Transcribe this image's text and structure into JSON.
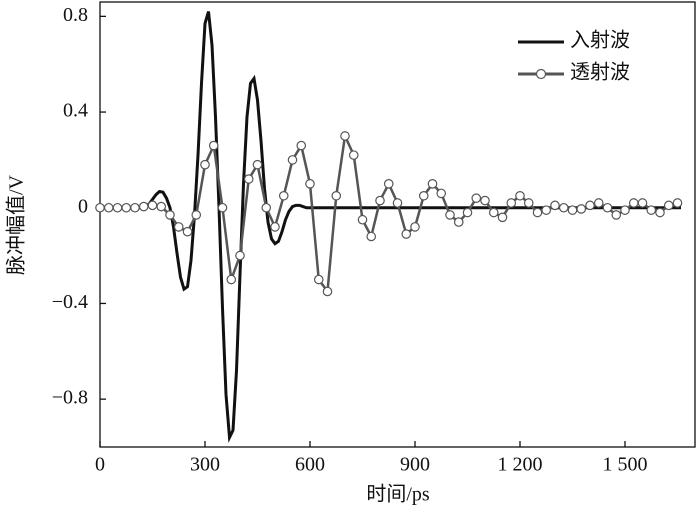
{
  "chart_data": {
    "type": "line",
    "xlabel": "时间/ps",
    "ylabel": "脉冲幅值/V",
    "xlim": [
      0,
      1700
    ],
    "ylim": [
      -1,
      0.86
    ],
    "xticks": [
      0,
      300,
      600,
      900,
      {
        "value": 1200,
        "label": "1 200"
      },
      {
        "value": 1500,
        "label": "1 500"
      }
    ],
    "yticks": [
      {
        "value": -0.8,
        "label": "−0.8"
      },
      {
        "value": -0.4,
        "label": "−0.4"
      },
      0,
      0.4,
      0.8
    ],
    "legend": "upper right",
    "series": [
      {
        "name": "入射波",
        "color": "#111111",
        "marker": "none",
        "x": [
          0,
          120,
          130,
          140,
          150,
          160,
          170,
          180,
          190,
          200,
          210,
          220,
          230,
          240,
          250,
          260,
          270,
          280,
          290,
          300,
          310,
          320,
          330,
          340,
          350,
          360,
          370,
          380,
          390,
          400,
          410,
          420,
          430,
          440,
          450,
          460,
          470,
          480,
          490,
          500,
          510,
          520,
          530,
          540,
          550,
          560,
          570,
          580,
          590,
          700,
          1660
        ],
        "values": [
          0,
          0,
          0.005,
          0.015,
          0.035,
          0.055,
          0.068,
          0.065,
          0.04,
          0,
          -0.08,
          -0.19,
          -0.29,
          -0.34,
          -0.33,
          -0.22,
          -0.03,
          0.22,
          0.52,
          0.77,
          0.82,
          0.68,
          0.38,
          0,
          -0.42,
          -0.78,
          -0.96,
          -0.93,
          -0.68,
          -0.28,
          0.1,
          0.38,
          0.52,
          0.54,
          0.45,
          0.28,
          0.08,
          -0.06,
          -0.13,
          -0.15,
          -0.14,
          -0.1,
          -0.05,
          -0.015,
          0.005,
          0.01,
          0.01,
          0.005,
          0,
          0,
          0
        ]
      },
      {
        "name": "透射波",
        "color": "#555555",
        "marker": "circle",
        "x": [
          0,
          25,
          50,
          75,
          100,
          125,
          150,
          175,
          200,
          225,
          250,
          275,
          300,
          325,
          350,
          375,
          400,
          425,
          450,
          475,
          500,
          525,
          550,
          575,
          600,
          625,
          650,
          675,
          700,
          725,
          750,
          775,
          800,
          825,
          850,
          875,
          900,
          925,
          950,
          975,
          1000,
          1025,
          1050,
          1075,
          1100,
          1125,
          1150,
          1175,
          1200,
          1225,
          1250,
          1275,
          1300,
          1325,
          1350,
          1375,
          1400,
          1425,
          1450,
          1475,
          1500,
          1525,
          1550,
          1575,
          1600,
          1625,
          1650
        ],
        "values": [
          0,
          0,
          0,
          0,
          0,
          0.005,
          0.01,
          0.005,
          -0.03,
          -0.08,
          -0.1,
          -0.03,
          0.18,
          0.26,
          0,
          -0.3,
          -0.2,
          0.12,
          0.18,
          0,
          -0.08,
          0.05,
          0.2,
          0.26,
          0.1,
          -0.3,
          -0.35,
          0.05,
          0.3,
          0.22,
          -0.05,
          -0.12,
          0.03,
          0.1,
          0.02,
          -0.11,
          -0.08,
          0.05,
          0.1,
          0.06,
          -0.03,
          -0.06,
          -0.02,
          0.04,
          0.03,
          -0.02,
          -0.04,
          0.02,
          0.05,
          0.02,
          -0.02,
          -0.01,
          0.01,
          0,
          -0.01,
          -0.005,
          0.01,
          0.02,
          0,
          -0.03,
          -0.01,
          0.02,
          0.02,
          -0.01,
          -0.02,
          0.01,
          0.02
        ]
      }
    ]
  }
}
